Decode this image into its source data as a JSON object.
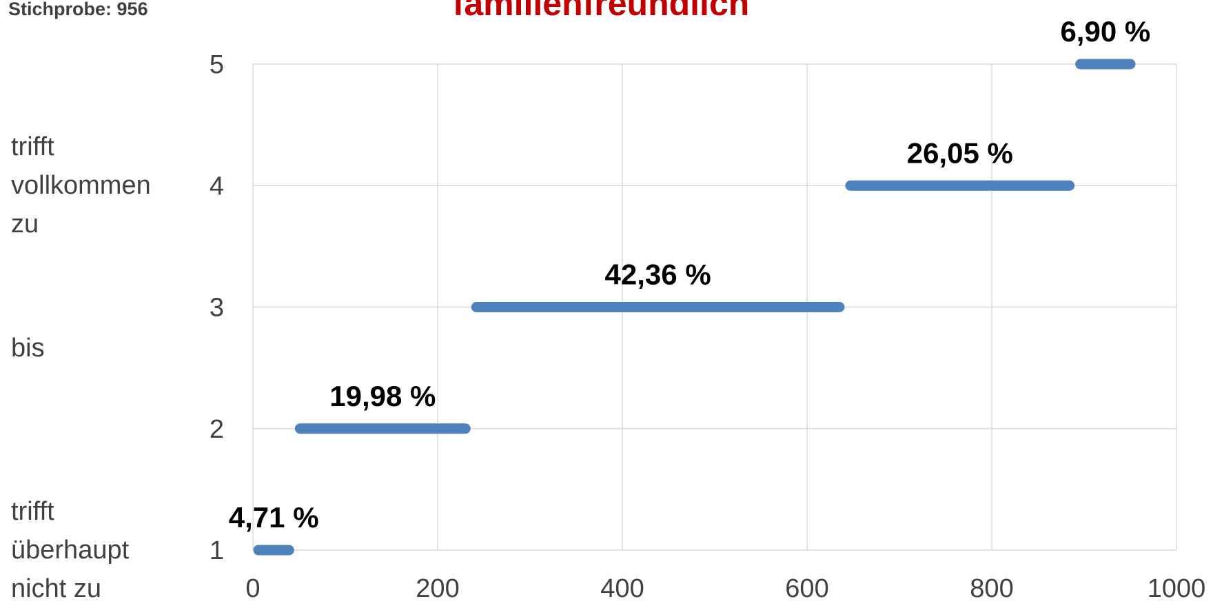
{
  "chart_data": {
    "type": "step-segments",
    "title": "familienfreundlich",
    "subtitle": "Stichprobe:",
    "sample_size": 956,
    "y": [
      1,
      2,
      3,
      4,
      5
    ],
    "values": [
      4.71,
      19.98,
      42.36,
      26.05,
      6.9
    ],
    "value_labels": [
      "4,71 %",
      "19,98 %",
      "42,36 %",
      "26,05 %",
      "6,90 %"
    ],
    "color": "#4f81bd",
    "xlim": [
      0,
      1000
    ],
    "xticks": [
      0,
      200,
      400,
      600,
      800,
      1000
    ],
    "ylim": [
      1,
      5
    ],
    "yticks": [
      1,
      2,
      3,
      4,
      5
    ],
    "side_labels": [
      {
        "text": "trifft vollkommen zu",
        "y": 4
      },
      {
        "text": "bis",
        "y": 2.66
      },
      {
        "text": "trifft überhaupt nicht zu",
        "y": 1
      }
    ],
    "grid": true
  }
}
